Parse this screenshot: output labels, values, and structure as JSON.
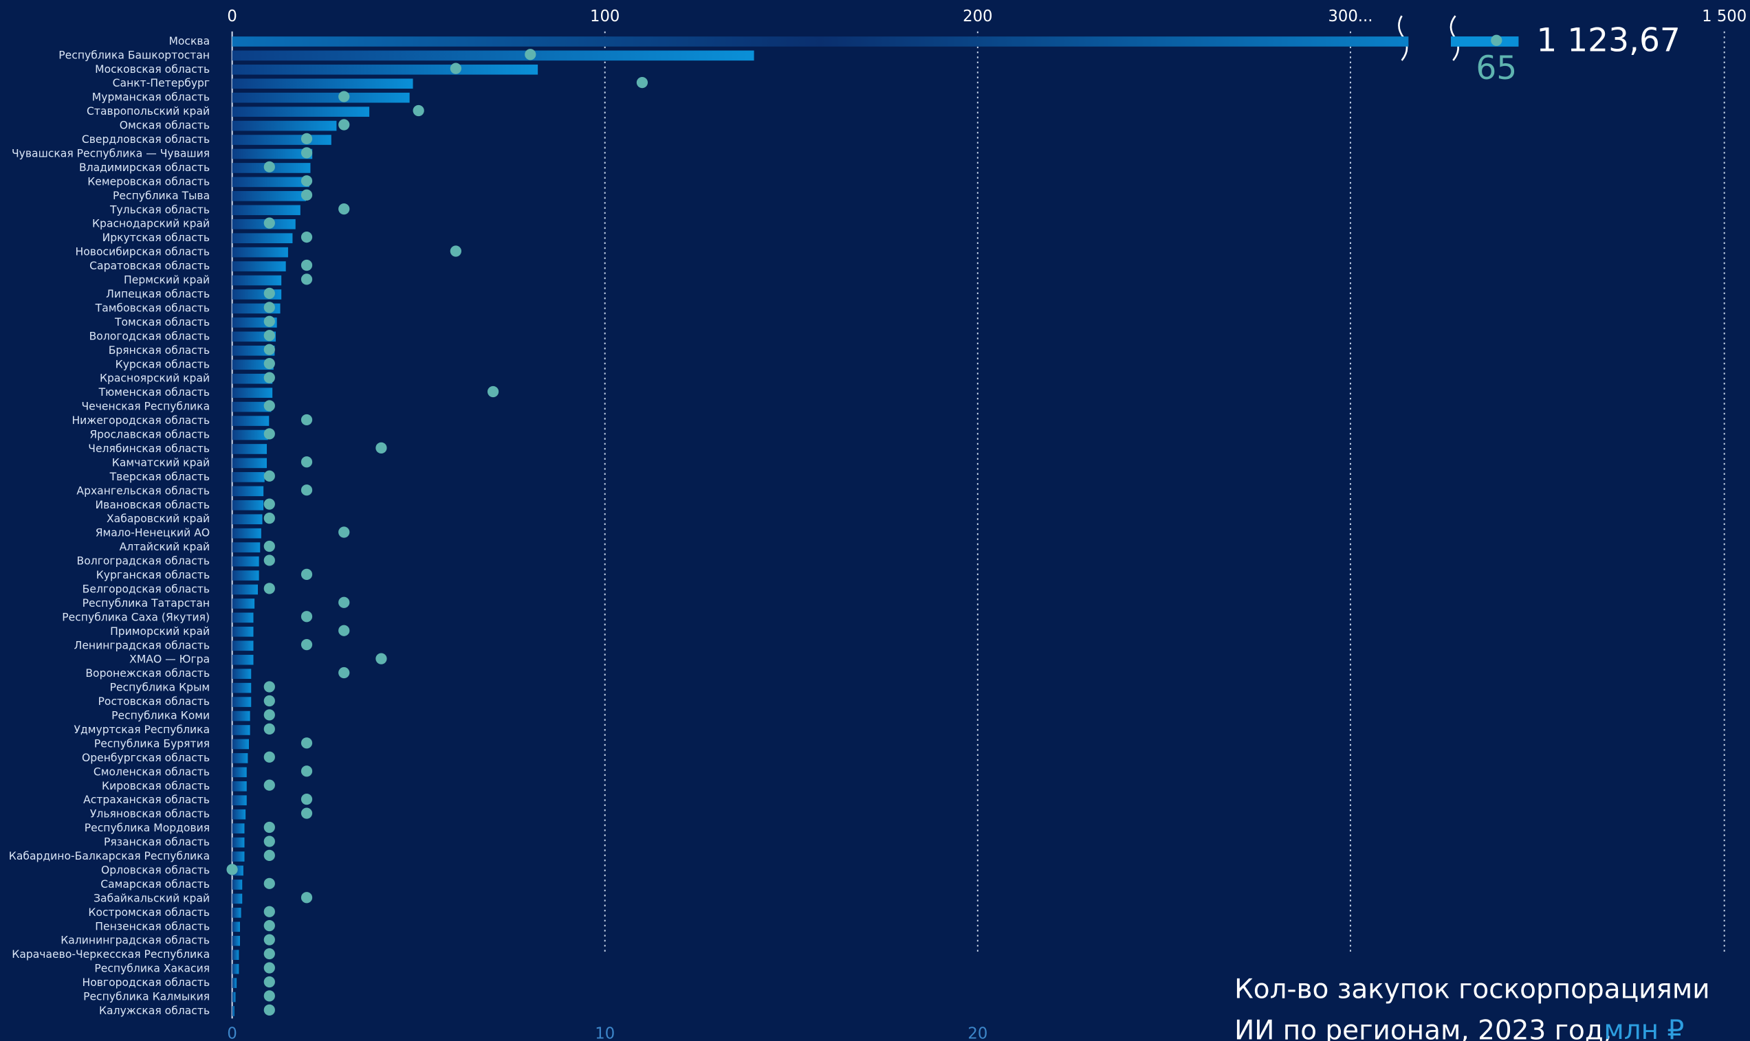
{
  "chart_data": {
    "type": "bar-dot",
    "title": "Кол-во закупок госкорпорациями ИИ по регионам, 2023 год,",
    "unit": "млн ₽",
    "categories": [
      "Москва",
      "Республика Башкортостан",
      "Московская область",
      "Санкт-Петербург",
      "Мурманская область",
      "Ставропольский край",
      "Омская область",
      "Свердловская область",
      "Чувашская Республика — Чувашия",
      "Владимирская область",
      "Кемеровская область",
      "Республика Тыва",
      "Тульская область",
      "Краснодарский край",
      "Иркутская область",
      "Новосибирская область",
      "Саратовская область",
      "Пермский край",
      "Липецкая область",
      "Тамбовская область",
      "Томская область",
      "Вологодская область",
      "Брянская область",
      "Курская область",
      "Красноярский край",
      "Тюменская область",
      "Чеченская Республика",
      "Нижегородская область",
      "Ярославская область",
      "Челябинская область",
      "Камчатский край",
      "Тверская область",
      "Архангельская область",
      "Ивановская область",
      "Хабаровский край",
      "Ямало-Ненецкий АО",
      "Алтайский край",
      "Волгоградская область",
      "Курганская область",
      "Белгородская область",
      "Республика Татарстан",
      "Республика Саха (Якутия)",
      "Приморский край",
      "Ленинградская область",
      "ХМАО — Югра",
      "Воронежская область",
      "Республика Крым",
      "Ростовская область",
      "Республика Коми",
      "Удмуртская Республика",
      "Республика Бурятия",
      "Оренбургская область",
      "Смоленская область",
      "Кировская область",
      "Астраханская область",
      "Ульяновская область",
      "Республика Мордовия",
      "Рязанская область",
      "Кабардино-Балкарская Республика",
      "Орловская область",
      "Самарская область",
      "Забайкальский край",
      "Костромская область",
      "Пензенская область",
      "Калининградская область",
      "Карачаево-Черкесская Республика",
      "Республика Хакасия",
      "Новгородская область",
      "Республика Калмыкия",
      "Калужская область"
    ],
    "series": [
      {
        "color": "#0a90d8",
        "values": [
          1123.67,
          140,
          82,
          48.5,
          47.6,
          36.8,
          28,
          26.6,
          21.5,
          21,
          20.7,
          19.8,
          18.3,
          17,
          16.2,
          15,
          14.4,
          13.2,
          13.2,
          12.9,
          12,
          11.7,
          11.4,
          11.1,
          10.8,
          10.8,
          10.5,
          9.9,
          9.6,
          9.3,
          9.3,
          8.7,
          8.4,
          8.4,
          8.1,
          7.8,
          7.5,
          7.2,
          7.2,
          6.9,
          6,
          5.7,
          5.7,
          5.7,
          5.7,
          5.1,
          5.1,
          5.1,
          4.8,
          4.8,
          4.5,
          4.2,
          3.9,
          3.9,
          3.9,
          3.6,
          3.3,
          3.3,
          3.3,
          3,
          2.7,
          2.7,
          2.4,
          2.1,
          2.1,
          1.8,
          1.8,
          1.2,
          0.9,
          0.6
        ],
        "value_labels": [
          "1 123,67",
          null,
          null,
          null,
          null,
          null,
          null,
          null,
          null,
          null,
          null,
          null,
          null,
          null,
          null,
          null,
          null,
          null,
          null,
          null,
          null,
          null,
          null,
          null,
          null,
          null,
          null,
          null,
          null,
          null,
          null,
          null,
          null,
          null,
          null,
          null,
          null,
          null,
          null,
          null,
          null,
          null,
          null,
          null,
          null,
          null,
          null,
          null,
          null,
          null,
          null,
          null,
          null,
          null,
          null,
          null,
          null,
          null,
          null,
          null,
          null,
          null,
          null,
          null,
          null,
          null,
          null,
          null,
          null,
          null
        ]
      },
      {
        "color": "#5fb4b0",
        "axis": "x2",
        "values": [
          65,
          8,
          6,
          11,
          3,
          5,
          3,
          2,
          2,
          1,
          2,
          2,
          3,
          1,
          2,
          6,
          2,
          2,
          1,
          1,
          1,
          1,
          1,
          1,
          1,
          7,
          1,
          2,
          1,
          4,
          2,
          1,
          2,
          1,
          1,
          3,
          1,
          1,
          2,
          1,
          3,
          2,
          3,
          2,
          4,
          3,
          1,
          1,
          1,
          1,
          2,
          1,
          2,
          1,
          2,
          2,
          1,
          1,
          1,
          0,
          1,
          2,
          1,
          1,
          1,
          1,
          1,
          1,
          1,
          1
        ]
      }
    ],
    "xlim": [
      0,
      300
    ],
    "xticks": [
      0,
      100,
      200,
      {
        "value": 300,
        "label": "300..."
      }
    ],
    "break_xlim": [
      1000,
      1500
    ],
    "break_xticks": [
      {
        "value": 1500,
        "label": "1 500"
      }
    ],
    "x2lim": [
      0,
      30
    ],
    "x2ticks": [
      0,
      10,
      20
    ],
    "break_x2lim": [
      60,
      90
    ],
    "grid": true
  }
}
